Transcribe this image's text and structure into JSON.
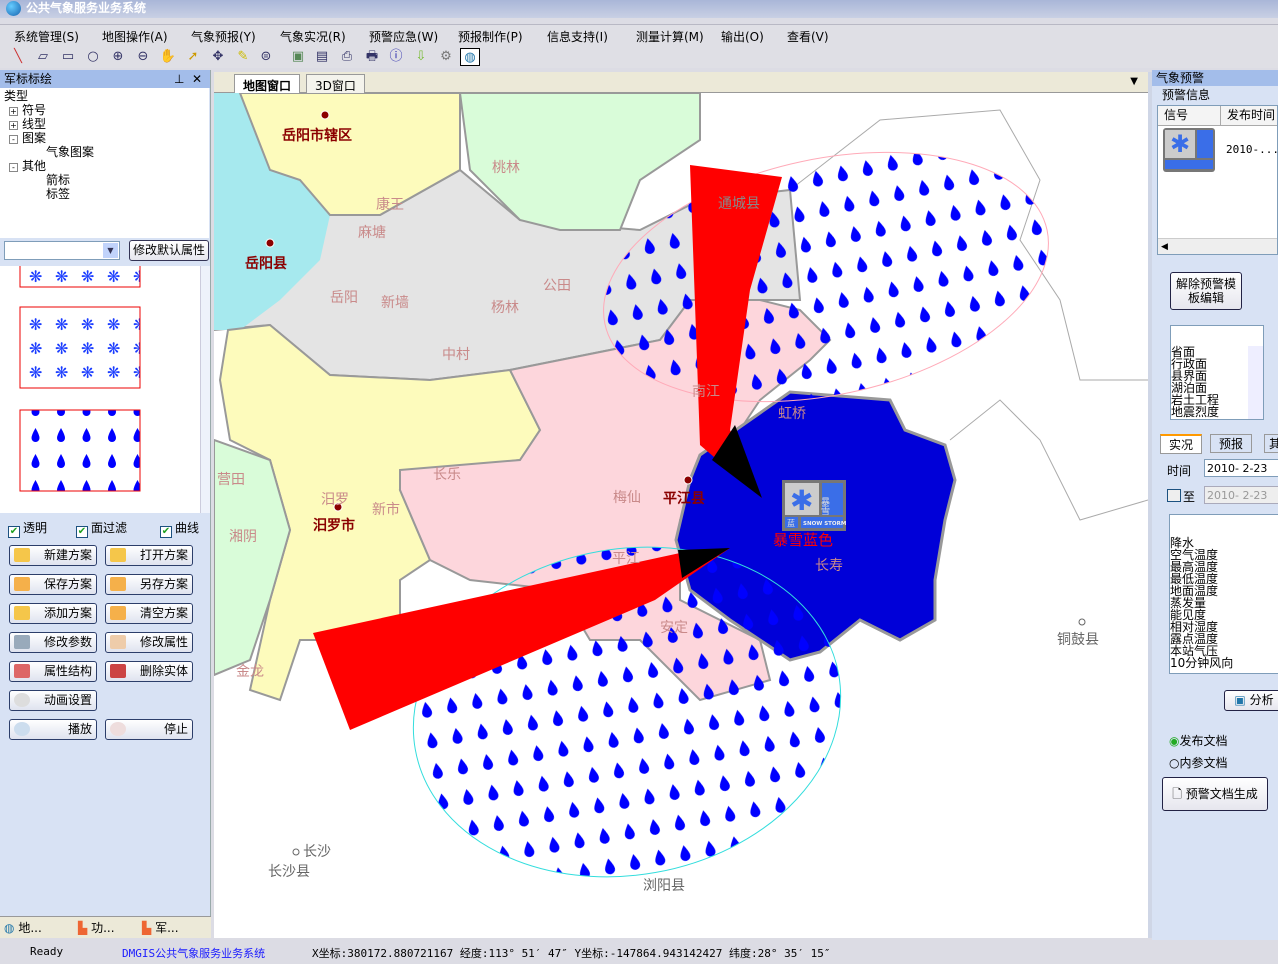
{
  "app": {
    "title": "公共气象服务业务系统"
  },
  "menu": [
    "系统管理(S)",
    "地图操作(A)",
    "气象预报(Y)",
    "气象实况(R)",
    "预警应急(W)",
    "预报制作(P)",
    "信息支持(I)",
    "测量计算(M)",
    "输出(O)",
    "查看(V)"
  ],
  "toolbar": {
    "icons": [
      "line-icon",
      "polygon-icon",
      "rectangle-icon",
      "circle-icon",
      "zoom-in-icon",
      "zoom-out-icon",
      "pan-hand-icon",
      "select-arrow-icon",
      "move-icon",
      "eraser-icon",
      "zoom-extent-icon",
      "map-image-icon",
      "layer-icon",
      "print-icon",
      "printer-icon",
      "info-icon",
      "download-icon",
      "settings-icon",
      "globe-icon"
    ]
  },
  "left_panel": {
    "title": "军标标绘",
    "tree": {
      "root": "类型",
      "items": [
        {
          "label": "符号",
          "state": "+"
        },
        {
          "label": "线型",
          "state": "+"
        },
        {
          "label": "图案",
          "state": "-"
        },
        {
          "label": "气象图案",
          "child": true
        },
        {
          "label": "其他",
          "state": "-"
        },
        {
          "label": "箭标",
          "child": true
        },
        {
          "label": "标签",
          "child": true
        }
      ]
    },
    "combo_value": "",
    "modify_default_button": "修改默认属性",
    "checkboxes": [
      {
        "label": "透明",
        "checked": true
      },
      {
        "label": "面过滤",
        "checked": true
      },
      {
        "label": "曲线",
        "checked": true
      }
    ],
    "buttons": [
      "新建方案",
      "打开方案",
      "保存方案",
      "另存方案",
      "添加方案",
      "清空方案",
      "修改参数",
      "修改属性",
      "属性结构",
      "删除实体",
      "动画设置",
      "播放",
      "停止"
    ],
    "bottom_tabs": [
      "地...",
      "功...",
      "军..."
    ]
  },
  "map": {
    "tabs": [
      "地图窗口",
      "3D窗口"
    ],
    "active_tab": "地图窗口",
    "labels": {
      "yueyang_city": "岳阳市辖区",
      "taolin": "桃林",
      "kangwang": "康王",
      "matang": "麻塘",
      "yueyang_county": "岳阳县",
      "yueyang": "岳阳",
      "xinqiang": "新墙",
      "yanglin": "杨林",
      "gongtian": "公田",
      "zhongcun": "中村",
      "tongcheng": "通城县",
      "yingtian": "营田",
      "miluo": "汨罗",
      "miluo_city": "汨罗市",
      "xinshi": "新市",
      "changle": "长乐",
      "xiangyin": "湘阴",
      "jinlong": "金龙",
      "meixian": "梅仙",
      "pingjiang_county": "平江县",
      "nanjiang": "南江",
      "hongqiao": "虹桥",
      "changshou": "长寿",
      "anding": "安定",
      "pingjiang": "平江",
      "tonggu": "铜鼓县",
      "changsha": "长沙",
      "changsha_county": "长沙县",
      "liuyang": "浏阳县"
    },
    "warning": {
      "label": "暴雪蓝色",
      "icon_text": "暴雪",
      "icon_sub": "SNOW STORM",
      "level_text": "蓝",
      "level_color": "#3a6ee8"
    },
    "colors": {
      "lake": "#a6e9ee",
      "yellow": "#fdfbbc",
      "green": "#d9fcd9",
      "grey": "#e4e4e4",
      "pink": "#fdd6dc",
      "warning_blue": "#0000d8",
      "arrow": "#ff0000",
      "drop": "#0000ff"
    }
  },
  "right_panel": {
    "title": "气象预警",
    "group": "预警信息",
    "table": {
      "columns": [
        "信号",
        "发布时间"
      ],
      "rows": [
        {
          "time": "2010-..."
        }
      ]
    },
    "unlock_button": "解除预警模板编辑",
    "layer_list": [
      "省面",
      "行政面",
      "县界面",
      "湖泊面",
      "岩土工程",
      "地震烈度"
    ],
    "tabs": [
      "实况",
      "预报",
      "其"
    ],
    "time_label": "时间",
    "time_value": "2010- 2-23",
    "to_label": "至",
    "to_checked": false,
    "to_value": "2010- 2-23",
    "element_list": [
      "降水",
      "空气温度",
      "最高温度",
      "最低温度",
      "地面温度",
      "蒸发量",
      "能见度",
      "相对湿度",
      "露点温度",
      "本站气压",
      "10分钟风向"
    ],
    "analyze_button": "分析",
    "doc_options": [
      {
        "label": "发布文档",
        "selected": true
      },
      {
        "label": "内参文档",
        "selected": false
      }
    ],
    "generate_button": "预警文档生成"
  },
  "status": {
    "ready": "Ready",
    "system": "DMGIS公共气象服务业务系统",
    "coords": "X坐标:380172.880721167 经度:113° 51′ 47″ Y坐标:-147864.943142427 纬度:28° 35′ 15″"
  }
}
